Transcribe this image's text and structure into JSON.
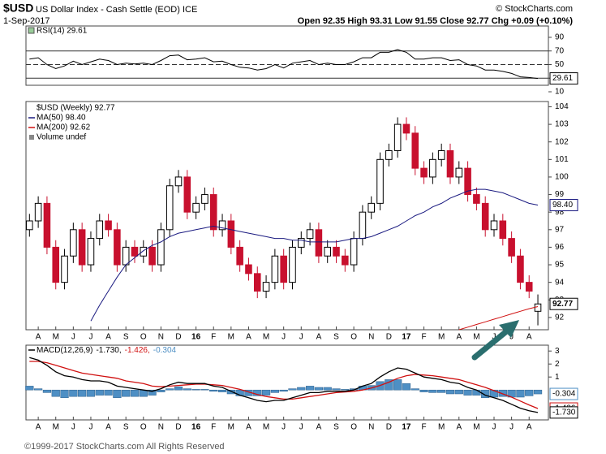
{
  "header": {
    "symbol": "$USD",
    "name": "US Dollar Index - Cash Settle (EOD) ICE",
    "source": "© StockCharts.com",
    "date": "1-Sep-2017",
    "quote": "Open 92.35 High 93.31 Low 91.55 Close 92.77 Chg +0.09 (+0.10%)"
  },
  "footer": "©1999-2017 StockCharts.com All Rights Reserved",
  "chart_data": [
    {
      "type": "line",
      "x": [
        -0.5,
        0,
        0.5,
        1,
        1.5,
        2,
        2.5,
        3,
        3.5,
        4,
        4.5,
        5,
        5.5,
        6,
        6.5,
        7,
        7.5,
        8,
        8.5,
        9,
        9.5,
        10,
        10.5,
        11,
        11.5,
        12,
        12.5,
        13,
        13.5,
        14,
        14.5,
        15,
        15.5,
        16,
        16.5,
        17,
        17.5,
        18,
        18.5,
        19,
        19.5,
        20,
        20.5,
        21,
        21.5,
        22,
        22.5,
        23,
        23.5,
        24,
        24.5,
        25,
        25.5,
        26,
        26.5,
        27,
        27.5,
        28,
        28.5
      ],
      "xlim": [
        -0.7,
        29.1
      ],
      "ylim": [
        10,
        100
      ],
      "yticks": [
        90,
        70,
        50,
        30,
        10
      ],
      "ref_lines": [
        70,
        30
      ],
      "dashed_lines": [
        50
      ],
      "series": [
        {
          "name": "RSI(14) 29.61",
          "color": "#000000",
          "value_label": "29.61",
          "values": [
            58,
            60,
            50,
            44,
            48,
            55,
            50,
            54,
            58,
            56,
            50,
            52,
            51,
            52,
            50,
            56,
            63,
            64,
            57,
            58,
            60,
            54,
            55,
            50,
            46,
            45,
            42,
            44,
            50,
            45,
            52,
            54,
            56,
            50,
            52,
            50,
            50,
            54,
            60,
            60,
            68,
            68,
            72,
            68,
            58,
            58,
            60,
            60,
            56,
            57,
            50,
            48,
            42,
            42,
            40,
            37,
            32,
            31,
            29.61
          ]
        }
      ]
    },
    {
      "type": "candlestick",
      "name": "$USD (Weekly) 92.77",
      "value_label": "92.77",
      "legend_extra": "Volume undef",
      "up_color": "#000000",
      "down_color": "#c8102e",
      "x": [
        -0.5,
        0,
        0.5,
        1,
        1.5,
        2,
        2.5,
        3,
        3.5,
        4,
        4.5,
        5,
        5.5,
        6,
        6.5,
        7,
        7.5,
        8,
        8.5,
        9,
        9.5,
        10,
        10.5,
        11,
        11.5,
        12,
        12.5,
        13,
        13.5,
        14,
        14.5,
        15,
        15.5,
        16,
        16.5,
        17,
        17.5,
        18,
        18.5,
        19,
        19.5,
        20,
        20.5,
        21,
        21.5,
        22,
        22.5,
        23,
        23.5,
        24,
        24.5,
        25,
        25.5,
        26,
        26.5,
        27,
        27.5,
        28,
        28.5
      ],
      "open": [
        97,
        97.5,
        98.5,
        96,
        94,
        95.5,
        97,
        95,
        96.5,
        97.5,
        97,
        95,
        96,
        95.5,
        96,
        95,
        97,
        99.5,
        100,
        98,
        98.5,
        99,
        97,
        97.5,
        96,
        95,
        94.5,
        93.5,
        94,
        95.5,
        94,
        96,
        96.5,
        97,
        95.5,
        96,
        95.5,
        95,
        96.5,
        98,
        98.5,
        101,
        101.5,
        103,
        102.5,
        100.5,
        100,
        101,
        101.5,
        100,
        100.5,
        99,
        98.5,
        97,
        97.5,
        96.5,
        95.5,
        94,
        92.35
      ],
      "high": [
        97.9,
        98.9,
        98.9,
        96.4,
        95.9,
        97.4,
        97.4,
        96.9,
        97.9,
        97.9,
        97.4,
        96.4,
        96.4,
        96.4,
        96.4,
        97.4,
        99.9,
        100.4,
        100.4,
        98.9,
        99.4,
        99.4,
        97.9,
        97.9,
        96.4,
        95.4,
        94.9,
        94.4,
        95.9,
        95.9,
        96.4,
        96.9,
        97.4,
        97.4,
        96.4,
        96.4,
        95.9,
        96.9,
        98.4,
        98.9,
        101.4,
        101.9,
        103.4,
        103.4,
        102.9,
        100.9,
        101.4,
        101.9,
        101.9,
        100.9,
        100.9,
        99.4,
        98.9,
        97.9,
        97.9,
        96.9,
        95.9,
        94.4,
        93.31
      ],
      "low": [
        96.6,
        97.1,
        95.6,
        93.6,
        93.6,
        95.1,
        94.6,
        94.6,
        96.1,
        96.6,
        94.6,
        94.6,
        95.1,
        95.1,
        94.6,
        94.6,
        96.6,
        99.1,
        97.6,
        97.6,
        98.1,
        96.6,
        96.6,
        95.6,
        94.6,
        94.1,
        93.1,
        93.1,
        93.6,
        93.6,
        93.6,
        95.6,
        96.1,
        95.1,
        95.1,
        95.1,
        94.6,
        94.6,
        96.1,
        97.6,
        98.1,
        100.6,
        101.1,
        102.1,
        100.1,
        99.6,
        99.6,
        100.6,
        99.6,
        99.6,
        98.6,
        98.1,
        96.6,
        96.6,
        96.1,
        95.1,
        93.6,
        93.1,
        91.55
      ],
      "close": [
        97.5,
        98.5,
        96,
        94,
        95.5,
        97,
        95,
        96.5,
        97.5,
        97,
        95,
        96,
        95.5,
        96,
        95,
        97,
        99.5,
        100,
        98,
        98.5,
        99,
        97,
        97.5,
        96,
        95,
        94.5,
        93.5,
        94,
        95.5,
        94,
        96,
        96.5,
        97,
        95.5,
        96,
        95.5,
        95,
        96.5,
        98,
        98.5,
        101,
        101.5,
        103,
        102.5,
        100.5,
        100,
        101,
        101.5,
        100,
        100.5,
        99,
        98.5,
        97,
        97.5,
        96.5,
        95.5,
        94,
        93.5,
        92.77
      ],
      "xlim": [
        -0.7,
        29.1
      ],
      "ylim": [
        91.3,
        104.3
      ],
      "yticks": [
        92,
        93,
        94,
        95,
        96,
        97,
        98,
        99,
        100,
        101,
        102,
        103,
        104
      ],
      "xticks": [
        {
          "value": 0,
          "label": "A"
        },
        {
          "value": 1,
          "label": "M"
        },
        {
          "value": 2,
          "label": "J"
        },
        {
          "value": 3,
          "label": "J"
        },
        {
          "value": 4,
          "label": "A"
        },
        {
          "value": 5,
          "label": "S"
        },
        {
          "value": 6,
          "label": "O"
        },
        {
          "value": 7,
          "label": "N"
        },
        {
          "value": 8,
          "label": "D"
        },
        {
          "value": 9,
          "label": "16"
        },
        {
          "value": 10,
          "label": "F"
        },
        {
          "value": 11,
          "label": "M"
        },
        {
          "value": 12,
          "label": "A"
        },
        {
          "value": 13,
          "label": "M"
        },
        {
          "value": 14,
          "label": "J"
        },
        {
          "value": 15,
          "label": "J"
        },
        {
          "value": 16,
          "label": "A"
        },
        {
          "value": 17,
          "label": "S"
        },
        {
          "value": 18,
          "label": "O"
        },
        {
          "value": 19,
          "label": "N"
        },
        {
          "value": 20,
          "label": "D"
        },
        {
          "value": 21,
          "label": "17"
        },
        {
          "value": 22,
          "label": "F"
        },
        {
          "value": 23,
          "label": "M"
        },
        {
          "value": 24,
          "label": "A"
        },
        {
          "value": 25,
          "label": "M"
        },
        {
          "value": 26,
          "label": "J"
        },
        {
          "value": 27,
          "label": "J"
        },
        {
          "value": 28,
          "label": "A"
        }
      ],
      "series": [
        {
          "name": "MA(50) 98.40",
          "color": "#1a1a80",
          "value_label": "98.40",
          "values": [
            null,
            null,
            null,
            null,
            null,
            null,
            null,
            91.8,
            92.7,
            93.5,
            94.3,
            95,
            95.4,
            95.8,
            96.1,
            96.3,
            96.6,
            96.8,
            96.9,
            97,
            97.1,
            97.2,
            97.1,
            97,
            96.9,
            96.8,
            96.7,
            96.6,
            96.5,
            96.5,
            96.4,
            96.4,
            96.3,
            96.3,
            96.3,
            96.3,
            96.4,
            96.5,
            96.5,
            96.6,
            96.8,
            97,
            97.2,
            97.5,
            97.8,
            98,
            98.3,
            98.5,
            98.8,
            99,
            99.2,
            99.3,
            99.3,
            99.2,
            99.1,
            98.9,
            98.7,
            98.5,
            98.4
          ]
        },
        {
          "name": "MA(200) 92.62",
          "color": "#d01010",
          "values": [
            null,
            null,
            null,
            null,
            null,
            null,
            null,
            null,
            null,
            null,
            null,
            null,
            null,
            null,
            null,
            null,
            null,
            null,
            null,
            null,
            null,
            null,
            null,
            null,
            null,
            null,
            null,
            null,
            null,
            null,
            null,
            null,
            null,
            null,
            null,
            null,
            null,
            null,
            null,
            null,
            null,
            null,
            null,
            null,
            null,
            null,
            null,
            null,
            null,
            91.3,
            91.45,
            91.6,
            91.75,
            91.9,
            92.05,
            92.2,
            92.35,
            92.5,
            92.62
          ]
        }
      ]
    },
    {
      "type": "line",
      "title": "MACD(12,26,9)",
      "x": [
        -0.5,
        0,
        0.5,
        1,
        1.5,
        2,
        2.5,
        3,
        3.5,
        4,
        4.5,
        5,
        5.5,
        6,
        6.5,
        7,
        7.5,
        8,
        8.5,
        9,
        9.5,
        10,
        10.5,
        11,
        11.5,
        12,
        12.5,
        13,
        13.5,
        14,
        14.5,
        15,
        15.5,
        16,
        16.5,
        17,
        17.5,
        18,
        18.5,
        19,
        19.5,
        20,
        20.5,
        21,
        21.5,
        22,
        22.5,
        23,
        23.5,
        24,
        24.5,
        25,
        25.5,
        26,
        26.5,
        27,
        27.5,
        28,
        28.5
      ],
      "xlim": [
        -0.7,
        29.1
      ],
      "ylim": [
        -2.3,
        3.45
      ],
      "yticks": [
        3,
        2,
        1
      ],
      "xticks": [
        {
          "value": 0,
          "label": "A"
        },
        {
          "value": 1,
          "label": "M"
        },
        {
          "value": 2,
          "label": "J"
        },
        {
          "value": 3,
          "label": "J"
        },
        {
          "value": 4,
          "label": "A"
        },
        {
          "value": 5,
          "label": "S"
        },
        {
          "value": 6,
          "label": "O"
        },
        {
          "value": 7,
          "label": "N"
        },
        {
          "value": 8,
          "label": "D"
        },
        {
          "value": 9,
          "label": "16"
        },
        {
          "value": 10,
          "label": "F"
        },
        {
          "value": 11,
          "label": "M"
        },
        {
          "value": 12,
          "label": "A"
        },
        {
          "value": 13,
          "label": "M"
        },
        {
          "value": 14,
          "label": "J"
        },
        {
          "value": 15,
          "label": "J"
        },
        {
          "value": 16,
          "label": "A"
        },
        {
          "value": 17,
          "label": "S"
        },
        {
          "value": 18,
          "label": "O"
        },
        {
          "value": 19,
          "label": "N"
        },
        {
          "value": 20,
          "label": "D"
        },
        {
          "value": 21,
          "label": "17"
        },
        {
          "value": 22,
          "label": "F"
        },
        {
          "value": 23,
          "label": "M"
        },
        {
          "value": 24,
          "label": "A"
        },
        {
          "value": 25,
          "label": "M"
        },
        {
          "value": 26,
          "label": "J"
        },
        {
          "value": 27,
          "label": "J"
        },
        {
          "value": 28,
          "label": "A"
        }
      ],
      "series": [
        {
          "name": "-0.304",
          "type": "bar",
          "color": "#4e8fc4",
          "value_label": "-0.304",
          "values": [
            0.3,
            0.1,
            -0.2,
            -0.5,
            -0.6,
            -0.5,
            -0.5,
            -0.5,
            -0.4,
            -0.4,
            -0.6,
            -0.5,
            -0.5,
            -0.5,
            -0.4,
            -0.15,
            0.1,
            0.25,
            0.1,
            0.05,
            0.05,
            -0.1,
            -0.15,
            -0.3,
            -0.45,
            -0.45,
            -0.45,
            -0.4,
            -0.2,
            -0.1,
            0.1,
            0.2,
            0.3,
            0.2,
            0.2,
            0.1,
            0.05,
            0.1,
            0.3,
            0.35,
            0.65,
            0.8,
            0.8,
            0.5,
            0.1,
            -0.15,
            -0.2,
            -0.2,
            -0.3,
            -0.3,
            -0.4,
            -0.4,
            -0.6,
            -0.55,
            -0.5,
            -0.55,
            -0.55,
            -0.45,
            -0.304
          ]
        },
        {
          "name": "-1.426,",
          "color": "#d01010",
          "value_label": "-1.426",
          "values": [
            2.2,
            2.2,
            2.1,
            1.9,
            1.7,
            1.5,
            1.3,
            1.2,
            1.1,
            1,
            0.9,
            0.7,
            0.6,
            0.5,
            0.3,
            0.25,
            0.3,
            0.35,
            0.4,
            0.45,
            0.45,
            0.4,
            0.35,
            0.2,
            0.05,
            -0.15,
            -0.35,
            -0.5,
            -0.6,
            -0.7,
            -0.7,
            -0.6,
            -0.5,
            -0.4,
            -0.3,
            -0.2,
            -0.15,
            -0.1,
            0,
            0.15,
            0.35,
            0.6,
            0.9,
            1.1,
            1.2,
            1.15,
            1.1,
            1,
            0.9,
            0.8,
            0.6,
            0.4,
            0.2,
            -0.05,
            -0.3,
            -0.55,
            -0.85,
            -1.15,
            -1.426
          ]
        },
        {
          "name": "-1.730,",
          "color": "#000000",
          "value_label": "-1.730",
          "values": [
            2.5,
            2.3,
            1.9,
            1.4,
            1.1,
            1,
            0.8,
            0.7,
            0.7,
            0.6,
            0.3,
            0.2,
            0.1,
            0,
            -0.1,
            0.1,
            0.4,
            0.6,
            0.5,
            0.5,
            0.5,
            0.3,
            0.2,
            -0.1,
            -0.4,
            -0.6,
            -0.8,
            -0.9,
            -0.8,
            -0.8,
            -0.6,
            -0.4,
            -0.2,
            -0.2,
            -0.1,
            -0.1,
            -0.1,
            0,
            0.3,
            0.5,
            1,
            1.4,
            1.7,
            1.6,
            1.3,
            1,
            0.9,
            0.8,
            0.6,
            0.5,
            0.2,
            0,
            -0.4,
            -0.6,
            -0.8,
            -1.1,
            -1.4,
            -1.6,
            -1.73
          ]
        }
      ]
    }
  ]
}
